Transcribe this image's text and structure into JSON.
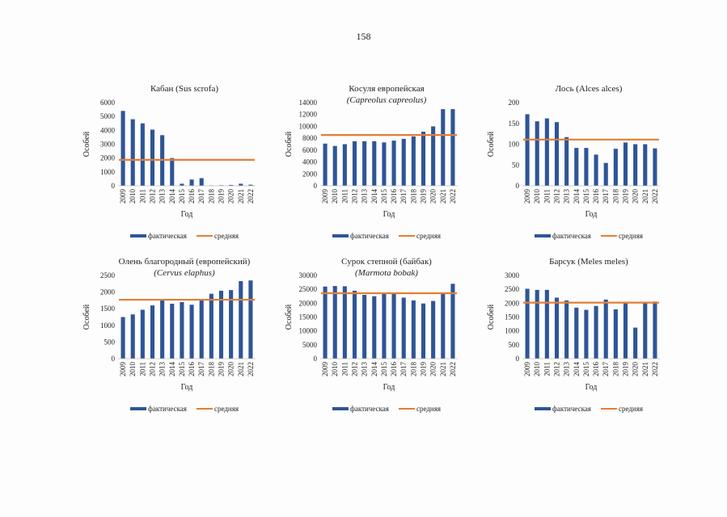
{
  "page_number": "158",
  "colors": {
    "actual": "#2e5597",
    "mean": "#e57d33"
  },
  "legend": {
    "actual": "фактическая",
    "mean": "средняя"
  },
  "chart_data": [
    {
      "type": "bar",
      "title_line1": "Кабан (Sus scrofa)",
      "title_line2": "",
      "xlabel": "Год",
      "ylabel": "Особей",
      "ylim": [
        0,
        6000
      ],
      "yticks": [
        0,
        1000,
        2000,
        3000,
        4000,
        5000,
        6000
      ],
      "categories": [
        "2009",
        "2010",
        "2011",
        "2012",
        "2013",
        "2014",
        "2015",
        "2016",
        "2017",
        "2018",
        "2019",
        "2020",
        "2021",
        "2022"
      ],
      "series": [
        {
          "name": "фактическая",
          "values": [
            5400,
            4800,
            4500,
            4050,
            3650,
            2000,
            150,
            450,
            550,
            30,
            40,
            60,
            150,
            80
          ]
        }
      ],
      "mean": 1870
    },
    {
      "type": "bar",
      "title_line1": "Косуля европейская",
      "title_line2": "(Capreolus capreolus)",
      "xlabel": "Год",
      "ylabel": "Особей",
      "ylim": [
        0,
        14000
      ],
      "yticks": [
        0,
        2000,
        4000,
        6000,
        8000,
        10000,
        12000,
        14000
      ],
      "categories": [
        "2009",
        "2010",
        "2011",
        "2012",
        "2013",
        "2014",
        "2015",
        "2016",
        "2017",
        "2018",
        "2019",
        "2020",
        "2021",
        "2022"
      ],
      "series": [
        {
          "name": "фактическая",
          "values": [
            7100,
            6700,
            7000,
            7500,
            7500,
            7500,
            7300,
            7600,
            7900,
            8300,
            9100,
            10000,
            12900,
            12900
          ]
        }
      ],
      "mean": 8550
    },
    {
      "type": "bar",
      "title_line1": "Лось (Alces alces)",
      "title_line2": "",
      "xlabel": "Год",
      "ylabel": "Особей",
      "ylim": [
        0,
        200
      ],
      "yticks": [
        0,
        50,
        100,
        150,
        200
      ],
      "categories": [
        "2009",
        "2010",
        "2011",
        "2012",
        "2013",
        "2014",
        "2015",
        "2016",
        "2017",
        "2018",
        "2019",
        "2020",
        "2021",
        "2022"
      ],
      "series": [
        {
          "name": "фактическая",
          "values": [
            172,
            155,
            162,
            153,
            117,
            91,
            91,
            75,
            55,
            89,
            104,
            100,
            100,
            90
          ]
        }
      ],
      "mean": 111
    },
    {
      "type": "bar",
      "title_line1": "Олень благородный (европейский)",
      "title_line2": "(Cervus elaphus)",
      "xlabel": "Год",
      "ylabel": "Особей",
      "ylim": [
        0,
        2500
      ],
      "yticks": [
        0,
        500,
        1000,
        1500,
        2000,
        2500
      ],
      "categories": [
        "2009",
        "2010",
        "2011",
        "2012",
        "2013",
        "2014",
        "2015",
        "2016",
        "2017",
        "2018",
        "2019",
        "2020",
        "2021",
        "2022"
      ],
      "series": [
        {
          "name": "фактическая",
          "values": [
            1250,
            1330,
            1470,
            1600,
            1750,
            1650,
            1700,
            1620,
            1780,
            1950,
            2040,
            2060,
            2330,
            2350
          ]
        }
      ],
      "mean": 1770
    },
    {
      "type": "bar",
      "title_line1": "Сурок степной (байбак)",
      "title_line2": "(Marmota bobak)",
      "xlabel": "Год",
      "ylabel": "Особей",
      "ylim": [
        0,
        30000
      ],
      "yticks": [
        0,
        5000,
        10000,
        15000,
        20000,
        25000,
        30000
      ],
      "categories": [
        "2009",
        "2010",
        "2011",
        "2012",
        "2013",
        "2014",
        "2015",
        "2016",
        "2017",
        "2018",
        "2019",
        "2020",
        "2021",
        "2022"
      ],
      "series": [
        {
          "name": "фактическая",
          "values": [
            26000,
            26200,
            26100,
            24500,
            23000,
            22500,
            23600,
            23600,
            22000,
            21000,
            19900,
            20800,
            23500,
            27000
          ]
        }
      ],
      "mean": 23600
    },
    {
      "type": "bar",
      "title_line1": "Барсук (Meles meles)",
      "title_line2": "",
      "xlabel": "Год",
      "ylabel": "Особей",
      "ylim": [
        0,
        3000
      ],
      "yticks": [
        0,
        500,
        1000,
        1500,
        2000,
        2500,
        3000
      ],
      "categories": [
        "2009",
        "2010",
        "2011",
        "2012",
        "2013",
        "2014",
        "2015",
        "2016",
        "2017",
        "2018",
        "2019",
        "2020",
        "2021",
        "2022"
      ],
      "series": [
        {
          "name": "фактическая",
          "values": [
            2520,
            2480,
            2480,
            2200,
            2100,
            1840,
            1760,
            1900,
            2130,
            1780,
            2000,
            1120,
            2020,
            2060
          ]
        }
      ],
      "mean": 2020
    }
  ]
}
